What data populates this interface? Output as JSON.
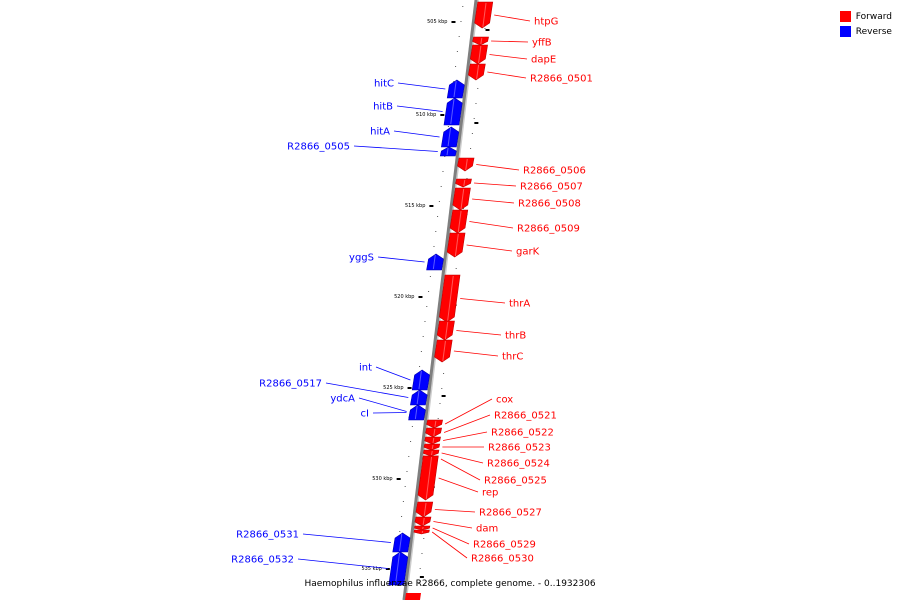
{
  "caption": "Haemophilus influenzae R2866, complete genome. - 0..1932306",
  "colors": {
    "forward": "#ff0000",
    "reverse": "#0000ff",
    "backbone": "#7f7f7f"
  },
  "legend": [
    {
      "label": "Forward",
      "color": "#ff0000"
    },
    {
      "label": "Reverse",
      "color": "#0000ff"
    }
  ],
  "scale_ticks": [
    "505 kbp",
    "510 kbp",
    "515 kbp",
    "520 kbp",
    "525 kbp",
    "530 kbp",
    "535 kbp"
  ],
  "genes": [
    {
      "name": "htpG",
      "strand": "forward"
    },
    {
      "name": "yffB",
      "strand": "forward"
    },
    {
      "name": "dapE",
      "strand": "forward"
    },
    {
      "name": "R2866_0501",
      "strand": "forward"
    },
    {
      "name": "hitC",
      "strand": "reverse"
    },
    {
      "name": "hitB",
      "strand": "reverse"
    },
    {
      "name": "hitA",
      "strand": "reverse"
    },
    {
      "name": "R2866_0505",
      "strand": "reverse"
    },
    {
      "name": "R2866_0506",
      "strand": "forward"
    },
    {
      "name": "R2866_0507",
      "strand": "forward"
    },
    {
      "name": "R2866_0508",
      "strand": "forward"
    },
    {
      "name": "R2866_0509",
      "strand": "forward"
    },
    {
      "name": "garK",
      "strand": "forward"
    },
    {
      "name": "yggS",
      "strand": "reverse"
    },
    {
      "name": "thrA",
      "strand": "forward"
    },
    {
      "name": "thrB",
      "strand": "forward"
    },
    {
      "name": "thrC",
      "strand": "forward"
    },
    {
      "name": "int",
      "strand": "reverse"
    },
    {
      "name": "R2866_0517",
      "strand": "reverse"
    },
    {
      "name": "ydcA",
      "strand": "reverse"
    },
    {
      "name": "cI",
      "strand": "reverse"
    },
    {
      "name": "cox",
      "strand": "forward"
    },
    {
      "name": "R2866_0521",
      "strand": "forward"
    },
    {
      "name": "R2866_0522",
      "strand": "forward"
    },
    {
      "name": "R2866_0523",
      "strand": "forward"
    },
    {
      "name": "R2866_0524",
      "strand": "forward"
    },
    {
      "name": "R2866_0525",
      "strand": "forward"
    },
    {
      "name": "rep",
      "strand": "forward"
    },
    {
      "name": "R2866_0527",
      "strand": "forward"
    },
    {
      "name": "dam",
      "strand": "forward"
    },
    {
      "name": "R2866_0529",
      "strand": "forward"
    },
    {
      "name": "R2866_0530",
      "strand": "forward"
    },
    {
      "name": "R2866_0531",
      "strand": "reverse"
    },
    {
      "name": "R2866_0532",
      "strand": "reverse"
    }
  ]
}
